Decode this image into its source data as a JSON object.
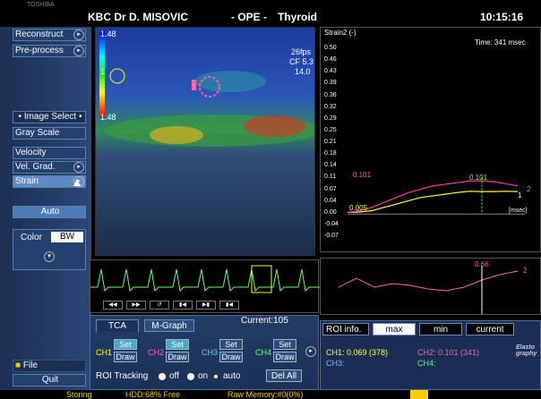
{
  "header": {
    "title": "KBC Dr D. MISOVIC",
    "mode": "- OPE -",
    "organ": "Thyroid",
    "time": "10:15:16",
    "logo": "TOSHIBA"
  },
  "sidebar": {
    "reconstruct": "Reconstruct",
    "preprocess": "Pre-process",
    "image_select": "Image Select",
    "gray_scale": "Gray Scale",
    "velocity": "Velocity",
    "vel_grad": "Vel. Grad.",
    "strain": "Strain",
    "auto": "Auto",
    "color": "Color",
    "bw": "BW",
    "file": "File",
    "quit": "Quit"
  },
  "image": {
    "scale_top": "1.48",
    "scale_mid": "1",
    "scale_bottom": "1.48",
    "fps": "26fps",
    "cf": "CF 5.3",
    "depth": "14.0"
  },
  "strain_chart": {
    "ylabel": "Strain2 (-)",
    "time_label": "Time: 341 msec",
    "xunit": "[msec]",
    "ticks": [
      "0.50",
      "0.46",
      "0.43",
      "0.39",
      "0.36",
      "0.32",
      "0.29",
      "0.25",
      "0.21",
      "0.18",
      "0.14",
      "0.11",
      "0.07",
      "0.04",
      "0.00",
      "-0.04",
      "-0.07"
    ],
    "annot_start": "0.101",
    "annot_low": "0.005",
    "annot_peak": "0.101",
    "marker1": "1",
    "marker2": "2"
  },
  "chart_data": {
    "type": "line",
    "title": "",
    "xlabel": "[msec]",
    "ylabel": "Strain2 (-)",
    "ylim": [
      -0.07,
      0.5
    ],
    "series": [
      {
        "name": "1",
        "color": "#ffff33",
        "values": [
          0.005,
          0.006,
          0.01,
          0.02,
          0.03,
          0.04,
          0.05,
          0.055,
          0.06,
          0.065,
          0.069,
          0.068,
          0.068,
          0.069,
          0.068
        ]
      },
      {
        "name": "2",
        "color": "#ff33aa",
        "values": [
          0.005,
          0.01,
          0.02,
          0.035,
          0.05,
          0.065,
          0.075,
          0.085,
          0.09,
          0.095,
          0.1,
          0.101,
          0.098,
          0.092,
          0.085
        ]
      }
    ]
  },
  "small_graph": {
    "value": "0.66",
    "label": "2"
  },
  "ecg": {
    "current": "Current:105"
  },
  "tca": {
    "tab_tca": "TCA",
    "tab_mgraph": "M-Graph",
    "ch1": "CH1",
    "ch2": "CH2",
    "ch3": "CH3",
    "ch4": "CH4",
    "set": "Set",
    "draw": "Draw",
    "roi_tracking": "ROI Tracking",
    "off": "off",
    "on": "on",
    "auto": "auto",
    "del_all": "Del All"
  },
  "roi": {
    "title": "ROI info.",
    "max": "max",
    "min": "min",
    "current": "current",
    "ch1": "CH1: 0.069 (378)",
    "ch2": "CH2: 0.101 (341)",
    "ch3": "CH3:",
    "ch4": "CH4:",
    "brand": "Elasto graphy"
  },
  "status": {
    "storing": "Storing",
    "hdd": "HDD:68% Free",
    "raw": "Raw Memory:#0(0%)"
  }
}
